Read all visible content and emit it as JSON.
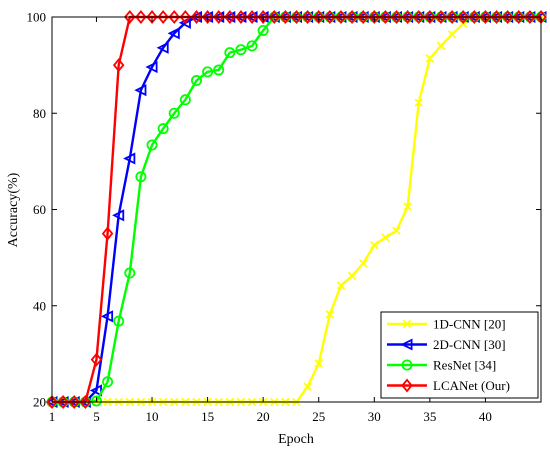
{
  "chart_data": {
    "type": "line",
    "title": "",
    "xlabel": "Epoch",
    "ylabel": "Accuracy(%)",
    "xlim": [
      1,
      45
    ],
    "ylim": [
      20,
      100
    ],
    "xticks": [
      1,
      5,
      10,
      15,
      20,
      25,
      30,
      35,
      40
    ],
    "yticks": [
      20,
      40,
      60,
      80,
      100
    ],
    "grid": false,
    "legend_position": "bottom-right",
    "series": [
      {
        "name": "1D-CNN [20]",
        "color": "#ffff00",
        "marker": "x",
        "values": [
          20,
          20,
          20,
          20,
          20,
          20,
          20,
          20,
          20,
          20,
          20,
          20,
          20,
          20,
          20,
          20,
          20,
          20,
          20,
          20,
          20,
          20,
          20,
          23.2,
          28,
          38.2,
          44.2,
          46.2,
          48.8,
          52.6,
          54.2,
          55.6,
          60.6,
          82.2,
          91.4,
          94,
          96.4,
          98.6,
          100,
          100,
          100,
          100,
          100,
          100,
          100
        ]
      },
      {
        "name": "2D-CNN [30]",
        "color": "#0000ff",
        "marker": "triangle-left",
        "values": [
          20,
          20,
          20,
          20,
          22.4,
          37.8,
          58.8,
          70.6,
          84.8,
          89.6,
          93.6,
          96.6,
          98.8,
          100,
          100,
          100,
          100,
          100,
          100,
          100,
          100,
          100,
          100,
          100,
          100,
          100,
          100,
          100,
          100,
          100,
          100,
          100,
          100,
          100,
          100,
          100,
          100,
          100,
          100,
          100,
          100,
          100,
          100,
          100,
          100
        ]
      },
      {
        "name": "ResNet [34]",
        "color": "#00ff00",
        "marker": "circle",
        "values": [
          20,
          20,
          20,
          20,
          20.2,
          24.2,
          36.8,
          46.8,
          66.8,
          73.4,
          76.8,
          80,
          82.8,
          86.8,
          88.6,
          89,
          92.6,
          93.2,
          94,
          97.2,
          100,
          100,
          100,
          100,
          100,
          100,
          100,
          100,
          100,
          100,
          100,
          100,
          100,
          100,
          100,
          100,
          100,
          100,
          100,
          100,
          100,
          100,
          100,
          100,
          100
        ]
      },
      {
        "name": "LCANet (Our)",
        "color": "#ff0000",
        "marker": "diamond",
        "values": [
          20,
          20,
          20,
          20,
          28.8,
          55,
          90,
          100,
          100,
          100,
          100,
          100,
          100,
          100,
          100,
          100,
          100,
          100,
          100,
          100,
          100,
          100,
          100,
          100,
          100,
          100,
          100,
          100,
          100,
          100,
          100,
          100,
          100,
          100,
          100,
          100,
          100,
          100,
          100,
          100,
          100,
          100,
          100,
          100,
          100
        ]
      }
    ]
  }
}
